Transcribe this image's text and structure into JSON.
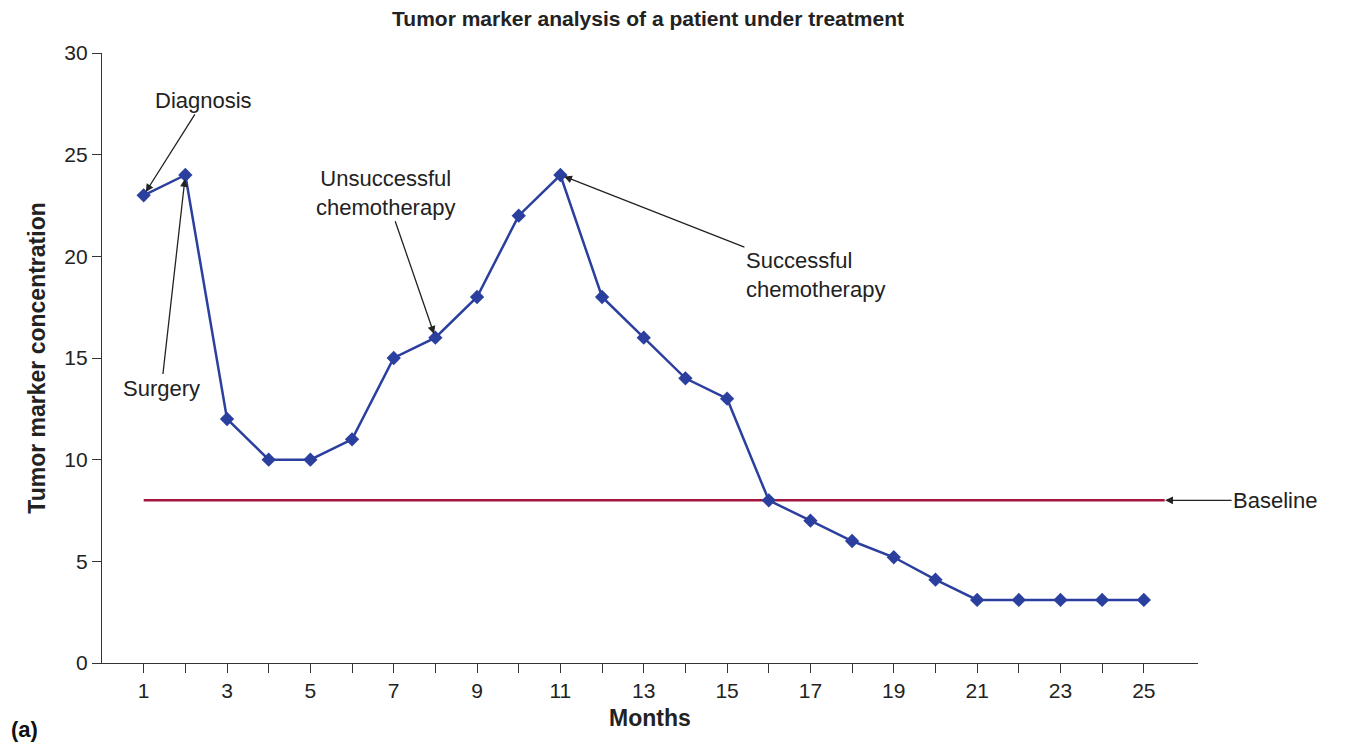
{
  "chart_data": {
    "type": "line",
    "title": "Tumor marker analysis of a patient under treatment",
    "x_label": "Months",
    "y_label": "Tumor marker concentration",
    "x": [
      1,
      2,
      3,
      4,
      5,
      6,
      7,
      8,
      9,
      10,
      11,
      12,
      13,
      14,
      15,
      16,
      17,
      18,
      19,
      20,
      21,
      22,
      23,
      24,
      25
    ],
    "values": [
      23,
      24,
      12,
      10,
      10,
      11,
      15,
      16,
      18,
      22,
      24,
      18,
      16,
      14,
      13,
      8,
      7,
      6,
      5.2,
      4.1,
      3.1,
      3.1,
      3.1,
      3.1,
      3.1
    ],
    "color": "#2b3f9f",
    "marker": "diamond",
    "line_style": "solid",
    "xlim": [
      0,
      26.3
    ],
    "xticks": [
      1,
      3,
      5,
      7,
      9,
      11,
      13,
      15,
      17,
      19,
      21,
      23,
      25
    ],
    "ylim": [
      0,
      30
    ],
    "yticks": [
      0,
      5,
      10,
      15,
      20,
      25,
      30
    ],
    "grid": false,
    "annotations": [
      {
        "text_lines": [
          "Diagnosis"
        ],
        "x": 1,
        "y": 23
      },
      {
        "text_lines": [
          "Surgery"
        ],
        "x": 2,
        "y": 24
      },
      {
        "text_lines": [
          "Unsuccessful",
          "chemotherapy"
        ],
        "x": 8,
        "y": 16
      },
      {
        "text_lines": [
          "Successful",
          "chemotherapy"
        ],
        "x": 11,
        "y": 24
      }
    ],
    "baseline": {
      "label": "Baseline",
      "value": 8,
      "x": [
        1,
        25.5
      ],
      "color": "#a3153f"
    },
    "panel_label": "(a)"
  }
}
